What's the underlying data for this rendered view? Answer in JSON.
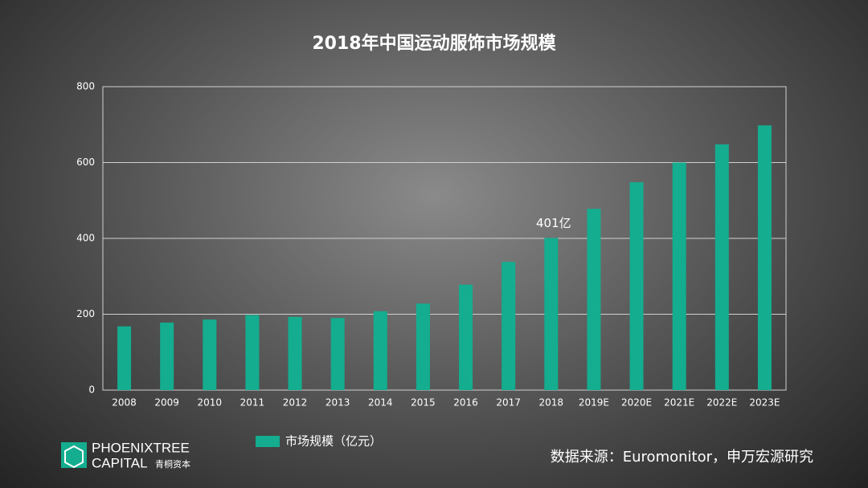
{
  "chart_data": {
    "type": "bar",
    "title": "2018年中国运动服饰市场规模",
    "categories": [
      "2008",
      "2009",
      "2010",
      "2011",
      "2012",
      "2013",
      "2014",
      "2015",
      "2016",
      "2017",
      "2018",
      "2019E",
      "2020E",
      "2021E",
      "2022E",
      "2023E"
    ],
    "series": [
      {
        "name": "市场规模（亿元）",
        "color": "#14ad8f",
        "values": [
          168,
          178,
          186,
          198,
          193,
          190,
          208,
          228,
          278,
          338,
          401,
          478,
          548,
          600,
          648,
          698
        ],
        "value_labels": [
          null,
          null,
          null,
          null,
          null,
          null,
          null,
          null,
          null,
          null,
          "401亿",
          null,
          null,
          null,
          null,
          null
        ]
      }
    ],
    "ylim": [
      0,
      800
    ],
    "yticks": [
      0,
      200,
      400,
      600,
      800
    ],
    "grid": true
  },
  "logo": {
    "line1": "PHOENIXTREE",
    "line2": "CAPITAL",
    "chinese": "青桐资本"
  },
  "source": "数据来源：Euromonitor，申万宏源研究"
}
